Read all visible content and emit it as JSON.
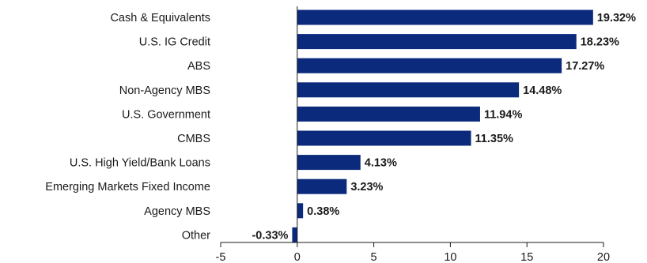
{
  "chart_data": {
    "type": "bar",
    "orientation": "horizontal",
    "categories": [
      "Cash & Equivalents",
      "U.S. IG Credit",
      "ABS",
      "Non-Agency MBS",
      "U.S. Government",
      "CMBS",
      "U.S. High Yield/Bank Loans",
      "Emerging Markets Fixed Income",
      "Agency MBS",
      "Other"
    ],
    "values": [
      19.32,
      18.23,
      17.27,
      14.48,
      11.94,
      11.35,
      4.13,
      3.23,
      0.38,
      -0.33
    ],
    "value_labels": [
      "19.32%",
      "18.23%",
      "17.27%",
      "14.48%",
      "11.94%",
      "11.35%",
      "4.13%",
      "3.23%",
      "0.38%",
      "-0.33%"
    ],
    "xlim": [
      -5,
      20
    ],
    "xticks": [
      -5,
      0,
      5,
      10,
      15,
      20
    ],
    "xtick_labels": [
      "-5",
      "0",
      "5",
      "10",
      "15",
      "20"
    ],
    "title": "",
    "xlabel": "",
    "ylabel": "",
    "grid": false,
    "legend": "none",
    "bar_color": "#0b2a7c"
  }
}
